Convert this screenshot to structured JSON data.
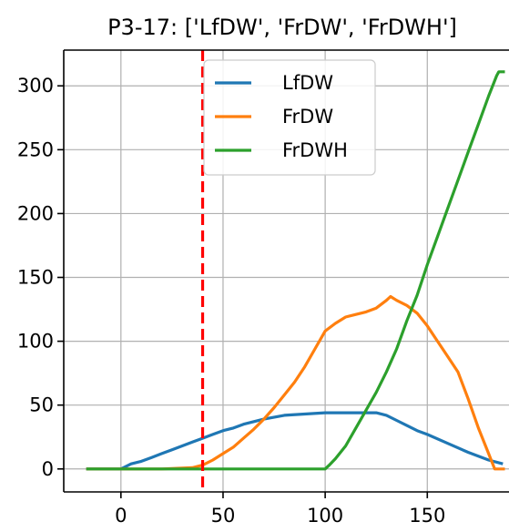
{
  "chart_data": {
    "type": "line",
    "title": "P3-17: ['LfDW', 'FrDW', 'FrDWH']",
    "xlim": [
      -28,
      190
    ],
    "ylim": [
      -18,
      328
    ],
    "xticks": [
      0,
      50,
      100,
      150
    ],
    "yticks": [
      0,
      50,
      100,
      150,
      200,
      250,
      300
    ],
    "grid": true,
    "legend_position": "upper center",
    "vline": {
      "x": 40,
      "color": "#ff0000",
      "style": "dashed"
    },
    "series": [
      {
        "name": "LfDW",
        "color": "#1f77b4",
        "x": [
          -17,
          0,
          5,
          10,
          15,
          20,
          25,
          30,
          35,
          40,
          45,
          50,
          55,
          60,
          70,
          80,
          90,
          100,
          110,
          120,
          125,
          130,
          135,
          140,
          145,
          150,
          160,
          170,
          180,
          187
        ],
        "y": [
          0,
          0,
          4,
          6,
          9,
          12,
          15,
          18,
          21,
          24,
          27,
          30,
          32,
          35,
          39,
          42,
          43,
          44,
          44,
          44,
          44,
          42,
          38,
          34,
          30,
          27,
          20,
          13,
          7,
          4
        ]
      },
      {
        "name": "FrDW",
        "color": "#ff7f0e",
        "x": [
          -17,
          0,
          20,
          35,
          40,
          45,
          50,
          55,
          60,
          65,
          70,
          75,
          80,
          85,
          90,
          95,
          100,
          105,
          110,
          115,
          120,
          125,
          130,
          132,
          135,
          140,
          145,
          150,
          155,
          160,
          165,
          170,
          175,
          180,
          183,
          185,
          188
        ],
        "y": [
          0,
          0,
          0,
          1,
          3,
          7,
          12,
          17,
          24,
          31,
          39,
          48,
          58,
          68,
          80,
          94,
          108,
          114,
          119,
          121,
          123,
          126,
          132,
          135,
          132,
          128,
          122,
          112,
          100,
          88,
          76,
          55,
          32,
          12,
          0,
          0,
          0
        ]
      },
      {
        "name": "FrDWH",
        "color": "#2ca02c",
        "x": [
          -17,
          0,
          50,
          100,
          102,
          105,
          110,
          115,
          120,
          125,
          130,
          135,
          140,
          145,
          150,
          155,
          160,
          165,
          170,
          175,
          180,
          184,
          185,
          188
        ],
        "y": [
          0,
          0,
          0,
          0,
          3,
          8,
          18,
          32,
          46,
          60,
          76,
          94,
          116,
          136,
          160,
          182,
          204,
          226,
          248,
          270,
          292,
          308,
          311,
          311
        ]
      }
    ]
  }
}
